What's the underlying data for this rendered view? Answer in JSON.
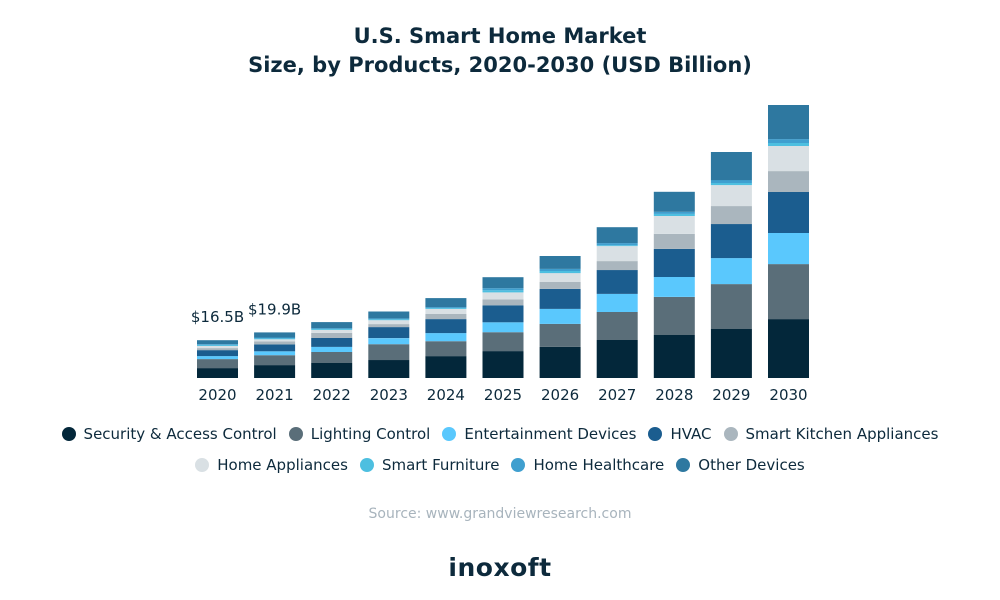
{
  "chart_data": {
    "type": "bar",
    "stacked": true,
    "title": "U.S. Smart Home Market Size, by Products, 2020-2030 (USD Billion)",
    "title_lines": [
      "U.S. Smart Home Market",
      "Size, by Products, 2020-2030 (USD Billion)"
    ],
    "xlabel": "",
    "ylabel": "",
    "grid": false,
    "legend_position": "bottom",
    "categories": [
      "2020",
      "2021",
      "2022",
      "2023",
      "2024",
      "2025",
      "2026",
      "2027",
      "2028",
      "2029",
      "2030"
    ],
    "ylim": [
      0,
      120
    ],
    "annotations": [
      {
        "category": "2020",
        "text": "$16.5B"
      },
      {
        "category": "2021",
        "text": "$19.9B"
      }
    ],
    "series": [
      {
        "name": "Security & Access Control",
        "color": "#03273a",
        "values": [
          4.3,
          5.6,
          6.5,
          7.8,
          9.5,
          11.7,
          13.5,
          16.5,
          18.7,
          21.3,
          25.6
        ]
      },
      {
        "name": "Lighting Control",
        "color": "#5a6e79",
        "values": [
          3.9,
          4.3,
          4.8,
          6.9,
          6.5,
          8.2,
          10.0,
          12.2,
          16.5,
          19.5,
          23.9
        ]
      },
      {
        "name": "Entertainment Devices",
        "color": "#5ac8fd",
        "values": [
          1.3,
          1.7,
          2.2,
          2.6,
          3.5,
          4.3,
          6.5,
          7.8,
          8.7,
          11.3,
          13.5
        ]
      },
      {
        "name": "HVAC",
        "color": "#1b5d8f",
        "values": [
          2.6,
          3.0,
          3.9,
          4.8,
          6.1,
          7.4,
          8.7,
          10.4,
          12.2,
          14.8,
          17.8
        ]
      },
      {
        "name": "Smart Kitchen Appliances",
        "color": "#aab6be",
        "values": [
          0.9,
          1.3,
          2.2,
          1.3,
          2.2,
          2.6,
          3.0,
          3.9,
          6.5,
          7.8,
          9.1
        ]
      },
      {
        "name": "Home Appliances",
        "color": "#d9e0e4",
        "values": [
          0.9,
          0.9,
          1.3,
          1.7,
          2.2,
          3.0,
          3.9,
          6.5,
          7.8,
          9.1,
          10.9
        ]
      },
      {
        "name": "Smart Furniture",
        "color": "#4dbfe0",
        "values": [
          0.4,
          0.4,
          0.4,
          0.4,
          0.4,
          0.9,
          0.9,
          0.4,
          0.9,
          0.9,
          1.3
        ]
      },
      {
        "name": "Home Healthcare",
        "color": "#3f9fcf",
        "values": [
          0.4,
          0.4,
          0.4,
          0.4,
          0.4,
          0.9,
          0.9,
          0.9,
          0.9,
          1.3,
          1.7
        ]
      },
      {
        "name": "Other Devices",
        "color": "#2e78a0",
        "values": [
          1.7,
          2.2,
          2.6,
          3.0,
          3.9,
          4.8,
          5.6,
          6.9,
          8.7,
          12.2,
          14.8
        ]
      }
    ]
  },
  "legend": {
    "row1": [
      0,
      1,
      2,
      3,
      4
    ],
    "row2": [
      5,
      6,
      7,
      8
    ]
  },
  "footer": {
    "source": "Source: www.grandviewresearch.com",
    "brand": "inoxoft"
  }
}
